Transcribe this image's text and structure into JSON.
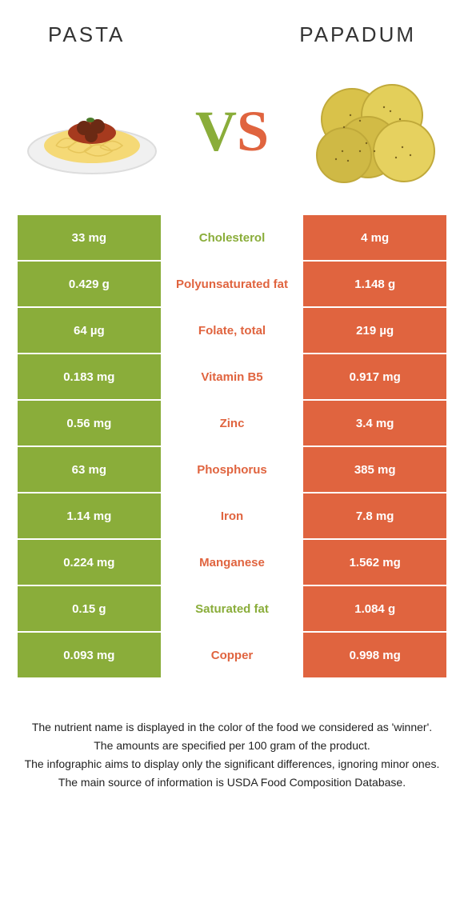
{
  "header": {
    "left_title": "Pasta",
    "right_title": "Papadum"
  },
  "vs": {
    "v": "V",
    "s": "S"
  },
  "colors": {
    "left": "#8aad3a",
    "right": "#e0643f",
    "bg": "#ffffff"
  },
  "rows": [
    {
      "left": "33 mg",
      "label": "Cholesterol",
      "right": "4 mg",
      "winner": "left"
    },
    {
      "left": "0.429 g",
      "label": "Polyunsaturated fat",
      "right": "1.148 g",
      "winner": "right"
    },
    {
      "left": "64 µg",
      "label": "Folate, total",
      "right": "219 µg",
      "winner": "right"
    },
    {
      "left": "0.183 mg",
      "label": "Vitamin B5",
      "right": "0.917 mg",
      "winner": "right"
    },
    {
      "left": "0.56 mg",
      "label": "Zinc",
      "right": "3.4 mg",
      "winner": "right"
    },
    {
      "left": "63 mg",
      "label": "Phosphorus",
      "right": "385 mg",
      "winner": "right"
    },
    {
      "left": "1.14 mg",
      "label": "Iron",
      "right": "7.8 mg",
      "winner": "right"
    },
    {
      "left": "0.224 mg",
      "label": "Manganese",
      "right": "1.562 mg",
      "winner": "right"
    },
    {
      "left": "0.15 g",
      "label": "Saturated fat",
      "right": "1.084 g",
      "winner": "left"
    },
    {
      "left": "0.093 mg",
      "label": "Copper",
      "right": "0.998 mg",
      "winner": "right"
    }
  ],
  "footnotes": [
    "The nutrient name is displayed in the color of the food we considered as 'winner'.",
    "The amounts are specified per 100 gram of the product.",
    "The infographic aims to display only the significant differences, ignoring minor ones.",
    "The main source of information is USDA Food Composition Database."
  ]
}
